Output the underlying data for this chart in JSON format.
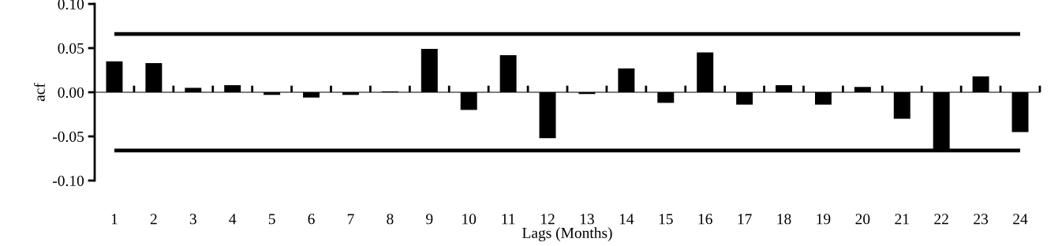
{
  "chart_data": {
    "type": "bar",
    "xlabel": "Lags (Months)",
    "ylabel": "acf",
    "categories": [
      "1",
      "2",
      "3",
      "4",
      "5",
      "6",
      "7",
      "8",
      "9",
      "10",
      "11",
      "12",
      "13",
      "14",
      "15",
      "16",
      "17",
      "18",
      "19",
      "20",
      "21",
      "22",
      "23",
      "24"
    ],
    "values": [
      0.035,
      0.033,
      0.005,
      0.008,
      -0.003,
      -0.006,
      -0.003,
      0.001,
      0.049,
      -0.02,
      0.042,
      -0.052,
      -0.002,
      0.027,
      -0.012,
      0.045,
      -0.014,
      0.008,
      -0.014,
      0.006,
      -0.03,
      -0.065,
      0.018,
      -0.045
    ],
    "color": "#000000",
    "ylim": [
      -0.1,
      0.1
    ],
    "yticks": [
      {
        "value": -0.1,
        "label": "-0.10"
      },
      {
        "value": -0.05,
        "label": "-0.05"
      },
      {
        "value": 0,
        "label": "0.00"
      },
      {
        "value": 0.05,
        "label": "0.05"
      },
      {
        "value": 0.1,
        "label": "0.10"
      }
    ],
    "ref_lines": [
      {
        "axis": "y",
        "value": 0.066,
        "color": "#000000"
      },
      {
        "axis": "y",
        "value": -0.066,
        "color": "#000000"
      }
    ],
    "legend": false
  }
}
